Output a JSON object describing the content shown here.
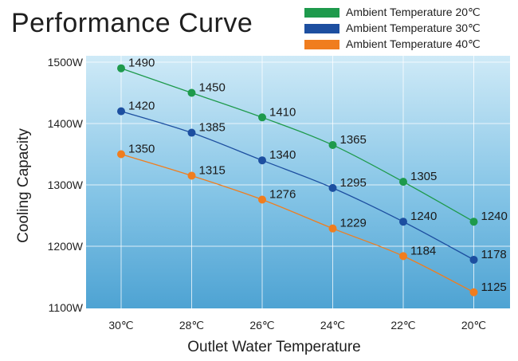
{
  "chart_data": {
    "type": "line",
    "title": "Performance Curve",
    "xlabel": "Outlet Water Temperature",
    "ylabel": "Cooling Capacity",
    "categories": [
      "30℃",
      "28℃",
      "26℃",
      "24℃",
      "22℃",
      "20℃"
    ],
    "y_ticks": [
      "1100W",
      "1200W",
      "1300W",
      "1400W",
      "1500W"
    ],
    "ylim": [
      1100,
      1500
    ],
    "grid": true,
    "legend_position": "top-right",
    "series": [
      {
        "name": "Ambient Temperature 20℃",
        "color": "#1e9a4c",
        "values": [
          1490,
          1450,
          1410,
          1365,
          1305,
          1240
        ],
        "labels": [
          "1490",
          "1450",
          "1410",
          "1365",
          "1305",
          "1240"
        ]
      },
      {
        "name": "Ambient Temperature 30℃",
        "color": "#1d4fa0",
        "values": [
          1420,
          1385,
          1340,
          1295,
          1240,
          1178
        ],
        "labels": [
          "1420",
          "1385",
          "1340",
          "1295",
          "1240",
          "1178"
        ]
      },
      {
        "name": "Ambient Temperature 40℃",
        "color": "#f07d1e",
        "values": [
          1350,
          1315,
          1276,
          1229,
          1184,
          1125
        ],
        "labels": [
          "1350",
          "1315",
          "1276",
          "1229",
          "1184",
          "1125"
        ]
      }
    ]
  }
}
